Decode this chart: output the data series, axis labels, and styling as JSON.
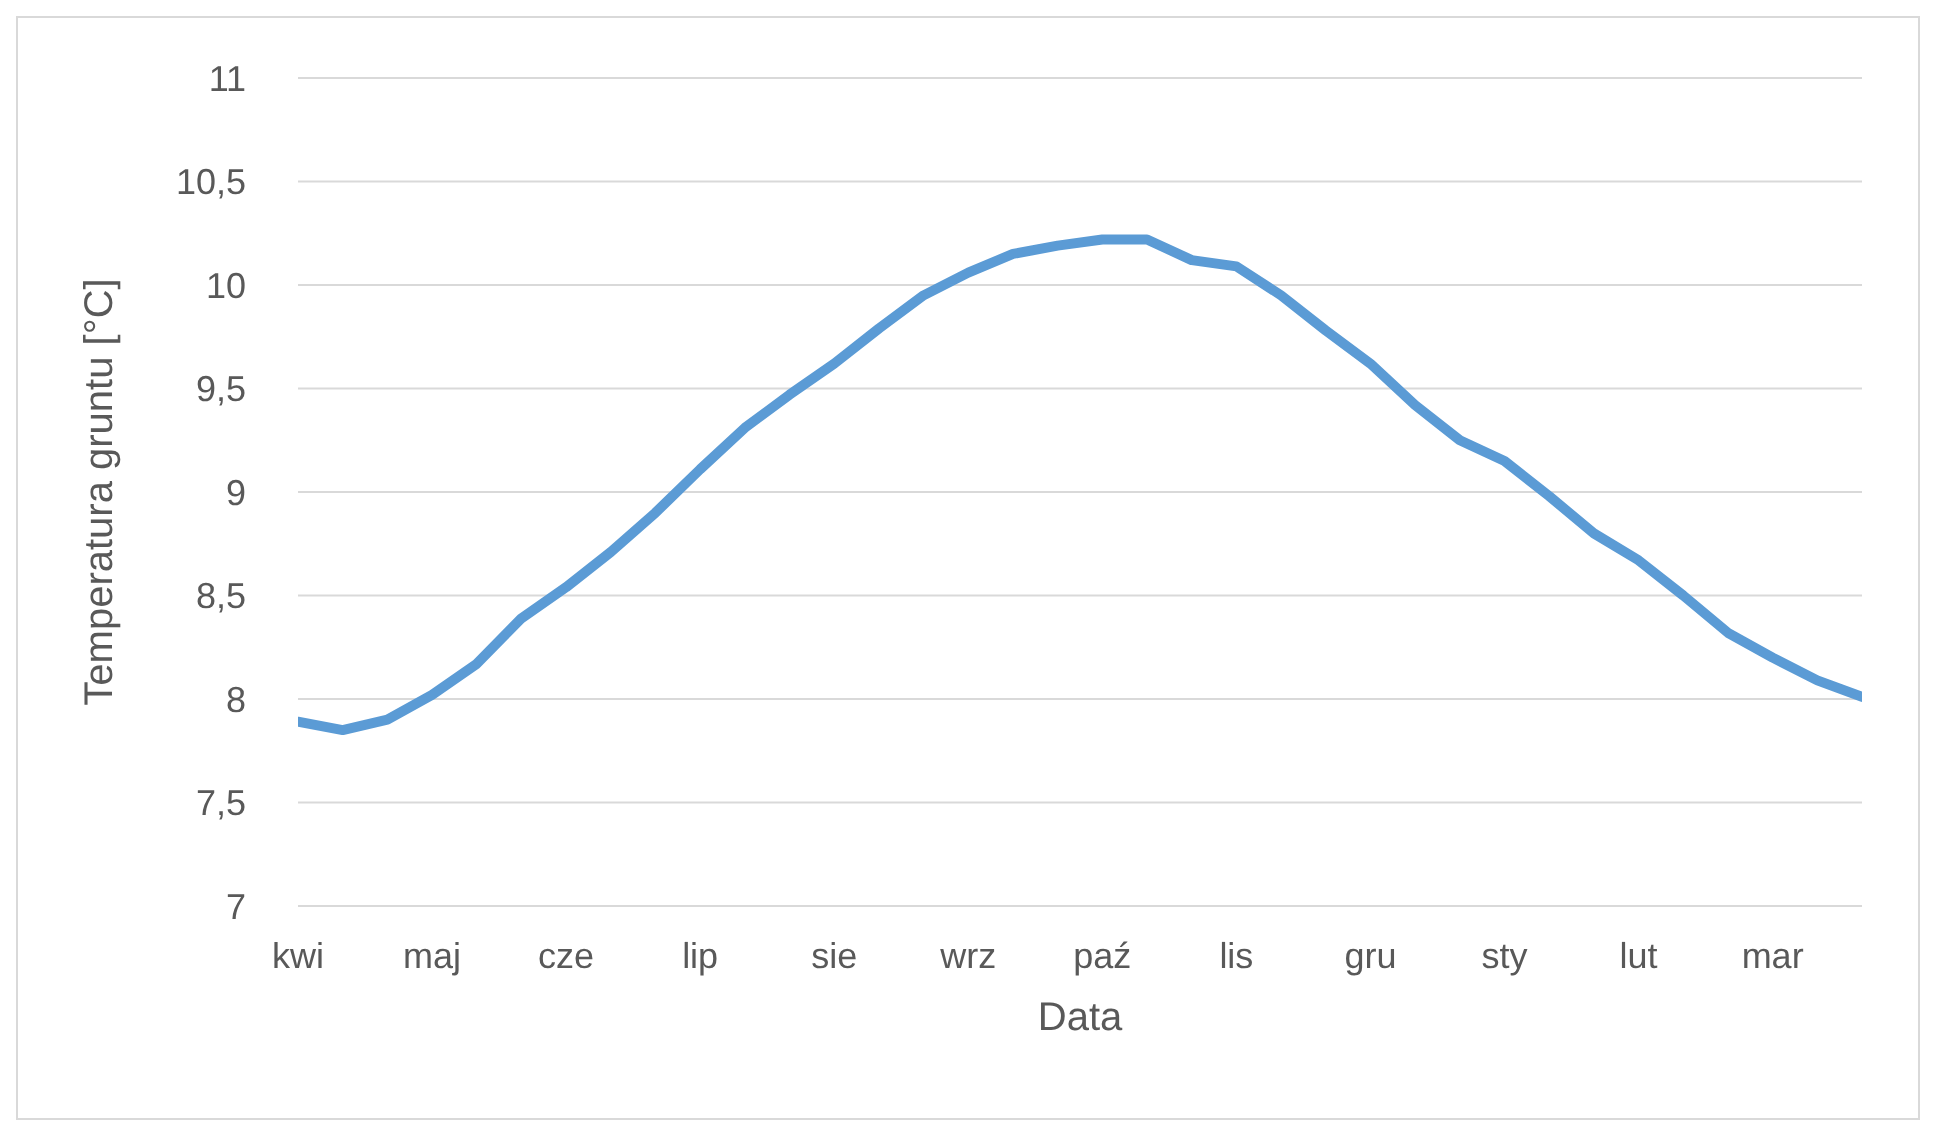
{
  "chart_data": {
    "type": "line",
    "xlabel": "Data",
    "ylabel": "Temperatura gruntu [°C]",
    "categories": [
      "kwi",
      null,
      null,
      "maj",
      null,
      null,
      "cze",
      null,
      null,
      "lip",
      null,
      null,
      "sie",
      null,
      null,
      "wrz",
      null,
      null,
      "paź",
      null,
      null,
      "lis",
      null,
      null,
      "gru",
      null,
      null,
      "sty",
      null,
      null,
      "lut",
      null,
      null,
      "mar",
      null,
      null
    ],
    "series": [
      {
        "color": "#5b9bd5",
        "values": [
          7.89,
          7.85,
          7.9,
          8.02,
          8.17,
          8.39,
          8.54,
          8.71,
          8.9,
          9.11,
          9.31,
          9.47,
          9.62,
          9.79,
          9.95,
          10.06,
          10.15,
          10.19,
          10.22,
          10.22,
          10.12,
          10.09,
          9.95,
          9.78,
          9.62,
          9.42,
          9.25,
          9.15,
          8.98,
          8.8,
          8.67,
          8.5,
          8.32,
          8.2,
          8.09,
          8.01
        ]
      }
    ],
    "ylim": [
      7,
      11
    ],
    "yticks": [
      7,
      {
        "value": 7.5,
        "label": "7,5"
      },
      8,
      {
        "value": 8.5,
        "label": "8,5"
      },
      9,
      {
        "value": 9.5,
        "label": "9,5"
      },
      10,
      {
        "value": 10.5,
        "label": "10,5"
      },
      11
    ],
    "grid": "y",
    "legend": false,
    "marker": "none",
    "line_style": "solid"
  }
}
